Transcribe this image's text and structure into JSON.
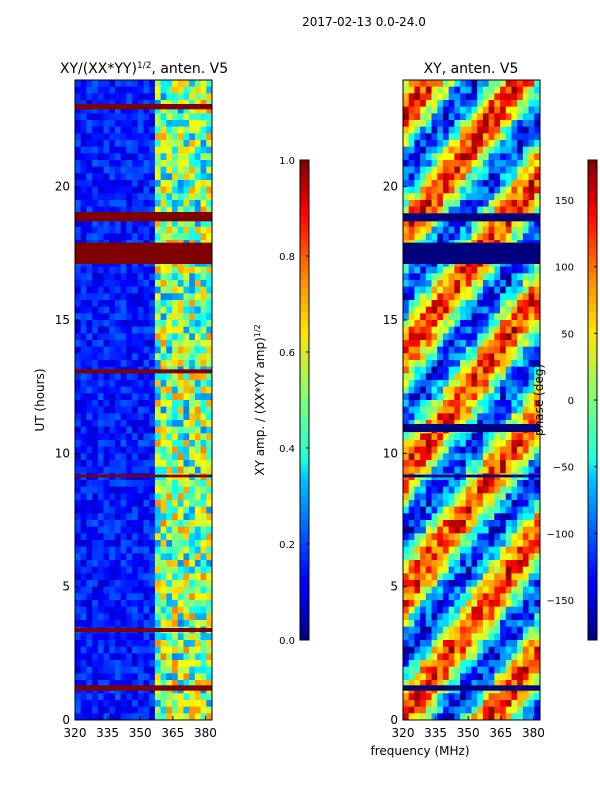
{
  "figure": {
    "suptitle": "2017-02-13 0.0-24.0"
  },
  "chart_data": [
    {
      "type": "heatmap",
      "title": "XY/(XX*YY)^1/2, anten. V5",
      "title_main": "XY/(XX*YY)",
      "title_sup": "1/2",
      "title_suffix": ", anten. V5",
      "xlabel": "",
      "ylabel": "UT (hours)",
      "xlim": [
        320,
        383
      ],
      "ylim": [
        0,
        24
      ],
      "xticks": [
        320,
        335,
        350,
        365,
        380
      ],
      "yticks": [
        0,
        5,
        10,
        15,
        20
      ],
      "colorbar": {
        "label": "XY amp. / (XX*YY amp)^1/2",
        "label_main": "XY amp. / (XX*YY amp)",
        "label_sup": "1/2",
        "range": [
          0.0,
          1.0
        ],
        "ticks": [
          "0.0",
          "0.2",
          "0.4",
          "0.6",
          "0.8",
          "1.0"
        ],
        "tick_values": [
          0.0,
          0.2,
          0.4,
          0.6,
          0.8,
          1.0
        ]
      },
      "flagged_bands_hours": [
        [
          22.9,
          23.1
        ],
        [
          18.7,
          19.05
        ],
        [
          17.1,
          17.9
        ],
        [
          1.1,
          1.3
        ],
        [
          3.3,
          3.45
        ],
        [
          9.1,
          9.2
        ],
        [
          13.0,
          13.15
        ]
      ]
    },
    {
      "type": "heatmap",
      "title": "XY, anten. V5",
      "xlabel": "frequency (MHz)",
      "ylabel": "",
      "xlim": [
        320,
        383
      ],
      "ylim": [
        0,
        24
      ],
      "xticks": [
        320,
        335,
        350,
        365,
        380
      ],
      "yticks": [
        0,
        5,
        10,
        15,
        20
      ],
      "colorbar": {
        "label": "phase (deg)",
        "range": [
          -180,
          180
        ],
        "ticks": [
          "−150",
          "−100",
          "−50",
          "0",
          "50",
          "100",
          "150"
        ],
        "tick_values": [
          -150,
          -100,
          -50,
          0,
          50,
          100,
          150
        ]
      },
      "flagged_bands_hours": [
        [
          17.1,
          17.9
        ],
        [
          18.7,
          19.0
        ],
        [
          10.8,
          11.1
        ],
        [
          9.1,
          9.2
        ],
        [
          1.1,
          1.3
        ]
      ]
    }
  ],
  "colors": {
    "flag": "#800000",
    "axis": "#000000"
  }
}
